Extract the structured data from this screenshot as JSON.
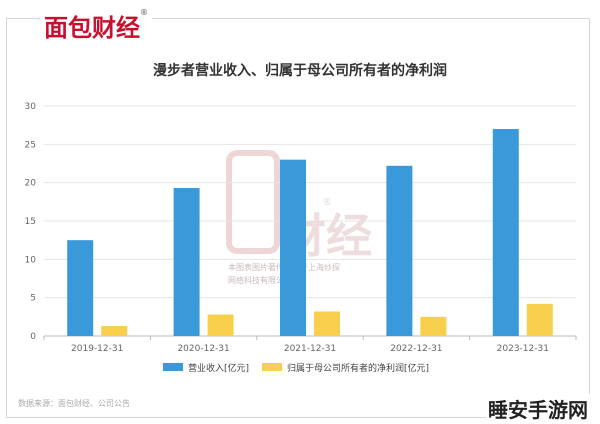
{
  "brand": {
    "logo_text": "面包财经",
    "registered": "®"
  },
  "footer": {
    "source": "数据来源：面包财经、公司公告",
    "corner_mark": "睡安手游网"
  },
  "watermark": {
    "logo_text": "面包财经",
    "registered": "®",
    "line1": "本图表图片著作权属于上海炒探",
    "line2": "网络科技有限公司"
  },
  "colors": {
    "revenue": "#3a9ad9",
    "profit": "#f7cf4d",
    "brand_red": "#c8102e"
  },
  "chart_data": {
    "type": "bar",
    "title": "漫步者营业收入、归属于母公司所有者的净利润",
    "categories": [
      "2019-12-31",
      "2020-12-31",
      "2021-12-31",
      "2022-12-31",
      "2023-12-31"
    ],
    "series": [
      {
        "name": "营业收入[亿元]",
        "values": [
          12.5,
          19.3,
          23.0,
          22.2,
          27.0
        ]
      },
      {
        "name": "归属于母公司所有者的净利润[亿元]",
        "values": [
          1.3,
          2.8,
          3.2,
          2.5,
          4.2
        ]
      }
    ],
    "yticks": [
      "0",
      "5",
      "10",
      "15",
      "20",
      "25",
      "30"
    ],
    "ylim": [
      0,
      30
    ],
    "grid": true,
    "legend": "bottom"
  }
}
